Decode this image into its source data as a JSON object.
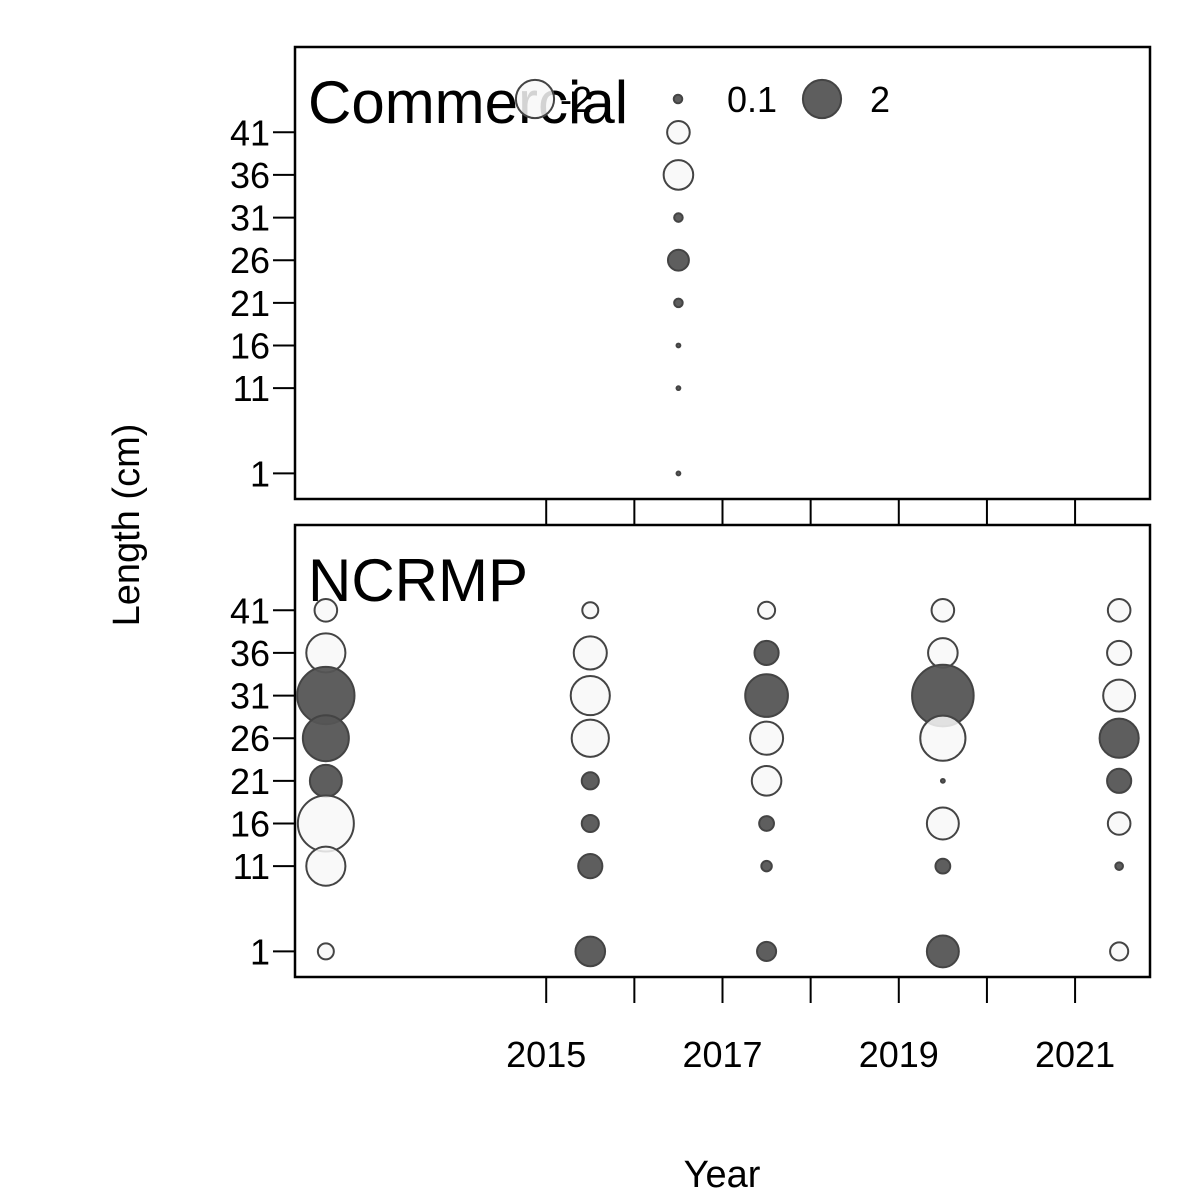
{
  "chart_data": {
    "type": "scatter",
    "subtype": "bubble",
    "xlabel": "Year",
    "ylabel": "Length (cm)",
    "x_ticks": [
      2015,
      2017,
      2019,
      2021
    ],
    "x_minor_ticks": [
      2016,
      2018,
      2020
    ],
    "xlim": [
      2012.15,
      2021.85
    ],
    "y_ticks": [
      1,
      11,
      16,
      21,
      26,
      31,
      36,
      41
    ],
    "ylim": [
      -2,
      51
    ],
    "colors": {
      "positive": "#555555",
      "negative": "#f8f8f8",
      "stroke": "#444444"
    },
    "legend": {
      "placement": "top",
      "entries": [
        {
          "label": "-2",
          "value": -2
        },
        {
          "label": "0.1",
          "value": 0.1
        },
        {
          "label": "2",
          "value": 2
        }
      ]
    },
    "panels": [
      {
        "name": "Commercial",
        "points": [
          {
            "year": 2016.5,
            "length": 41,
            "value": -0.7
          },
          {
            "year": 2016.5,
            "length": 36,
            "value": -1.2
          },
          {
            "year": 2016.5,
            "length": 31,
            "value": 0.1
          },
          {
            "year": 2016.5,
            "length": 26,
            "value": 0.6
          },
          {
            "year": 2016.5,
            "length": 21,
            "value": 0.1
          },
          {
            "year": 2016.5,
            "length": 16,
            "value": 0.02
          },
          {
            "year": 2016.5,
            "length": 11,
            "value": 0.02
          },
          {
            "year": 2016.5,
            "length": 1,
            "value": 0.02
          }
        ]
      },
      {
        "name": "NCRMP",
        "points": [
          {
            "year": 2012.5,
            "length": 41,
            "value": -0.7
          },
          {
            "year": 2012.5,
            "length": 36,
            "value": -2.1
          },
          {
            "year": 2012.5,
            "length": 31,
            "value": 4.5
          },
          {
            "year": 2012.5,
            "length": 26,
            "value": 2.9
          },
          {
            "year": 2012.5,
            "length": 21,
            "value": 1.4
          },
          {
            "year": 2012.5,
            "length": 16,
            "value": -4.3
          },
          {
            "year": 2012.5,
            "length": 11,
            "value": -2.1
          },
          {
            "year": 2012.5,
            "length": 1,
            "value": -0.35
          },
          {
            "year": 2015.5,
            "length": 41,
            "value": -0.35
          },
          {
            "year": 2015.5,
            "length": 36,
            "value": -1.5
          },
          {
            "year": 2015.5,
            "length": 31,
            "value": -2.1
          },
          {
            "year": 2015.5,
            "length": 26,
            "value": -1.9
          },
          {
            "year": 2015.5,
            "length": 21,
            "value": 0.4
          },
          {
            "year": 2015.5,
            "length": 16,
            "value": 0.4
          },
          {
            "year": 2015.5,
            "length": 11,
            "value": 0.8
          },
          {
            "year": 2015.5,
            "length": 1,
            "value": 1.2
          },
          {
            "year": 2017.5,
            "length": 41,
            "value": -0.4
          },
          {
            "year": 2017.5,
            "length": 36,
            "value": 0.8
          },
          {
            "year": 2017.5,
            "length": 31,
            "value": 2.5
          },
          {
            "year": 2017.5,
            "length": 26,
            "value": -1.5
          },
          {
            "year": 2017.5,
            "length": 21,
            "value": -1.2
          },
          {
            "year": 2017.5,
            "length": 16,
            "value": 0.3
          },
          {
            "year": 2017.5,
            "length": 11,
            "value": 0.15
          },
          {
            "year": 2017.5,
            "length": 1,
            "value": 0.5
          },
          {
            "year": 2019.5,
            "length": 41,
            "value": -0.7
          },
          {
            "year": 2019.5,
            "length": 36,
            "value": -1.2
          },
          {
            "year": 2019.5,
            "length": 31,
            "value": 5.2
          },
          {
            "year": 2019.5,
            "length": 26,
            "value": -2.8
          },
          {
            "year": 2019.5,
            "length": 21,
            "value": 0.02
          },
          {
            "year": 2019.5,
            "length": 16,
            "value": -1.4
          },
          {
            "year": 2019.5,
            "length": 11,
            "value": 0.3
          },
          {
            "year": 2019.5,
            "length": 1,
            "value": 1.4
          },
          {
            "year": 2021.5,
            "length": 41,
            "value": -0.7
          },
          {
            "year": 2021.5,
            "length": 36,
            "value": -0.8
          },
          {
            "year": 2021.5,
            "length": 31,
            "value": -1.4
          },
          {
            "year": 2021.5,
            "length": 26,
            "value": 2.1
          },
          {
            "year": 2021.5,
            "length": 21,
            "value": 0.8
          },
          {
            "year": 2021.5,
            "length": 16,
            "value": -0.7
          },
          {
            "year": 2021.5,
            "length": 11,
            "value": 0.08
          },
          {
            "year": 2021.5,
            "length": 1,
            "value": -0.45
          }
        ]
      }
    ]
  }
}
